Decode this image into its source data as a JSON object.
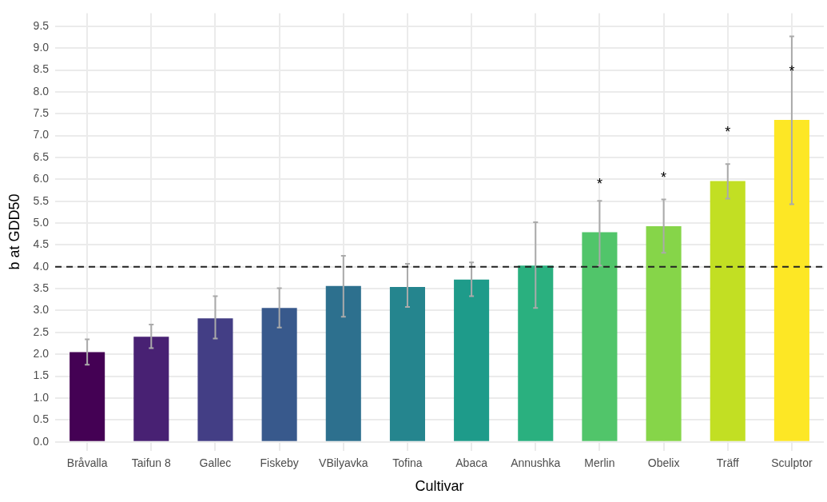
{
  "chart_data": {
    "type": "bar",
    "xlabel": "Cultivar",
    "ylabel": "b at GDD50",
    "categories": [
      "Bråvalla",
      "Taifun 8",
      "Gallec",
      "Fiskeby",
      "VBilyavka",
      "Tofina",
      "Abaca",
      "Annushka",
      "Merlin",
      "Obelix",
      "Träff",
      "Sculptor"
    ],
    "values": [
      2.05,
      2.4,
      2.82,
      3.06,
      3.56,
      3.54,
      3.71,
      4.03,
      4.79,
      4.93,
      5.96,
      7.36
    ],
    "colors": [
      "#440154",
      "#482173",
      "#433e85",
      "#38598c",
      "#2d708e",
      "#25858e",
      "#1e9b8a",
      "#2ab07f",
      "#51c56a",
      "#86d549",
      "#c2df23",
      "#fde725"
    ],
    "errors": [
      [
        1.76,
        2.34
      ],
      [
        2.14,
        2.68
      ],
      [
        2.36,
        3.33
      ],
      [
        2.61,
        3.51
      ],
      [
        2.86,
        4.25
      ],
      [
        3.08,
        4.07
      ],
      [
        3.33,
        4.1
      ],
      [
        3.06,
        5.02
      ],
      [
        4.03,
        5.51
      ],
      [
        4.32,
        5.54
      ],
      [
        5.56,
        6.35
      ],
      [
        5.43,
        9.27
      ]
    ],
    "ylim": [
      -0.2,
      9.8
    ],
    "yticks": [
      {
        "value": 0,
        "label": "0.0"
      },
      {
        "value": 0.5,
        "label": "0.5"
      },
      {
        "value": 1,
        "label": "1.0"
      },
      {
        "value": 1.5,
        "label": "1.5"
      },
      {
        "value": 2,
        "label": "2.0"
      },
      {
        "value": 2.5,
        "label": "2.5"
      },
      {
        "value": 3,
        "label": "3.0"
      },
      {
        "value": 3.5,
        "label": "3.5"
      },
      {
        "value": 4,
        "label": "4.0"
      },
      {
        "value": 4.5,
        "label": "4.5"
      },
      {
        "value": 5,
        "label": "5.0"
      },
      {
        "value": 5.5,
        "label": "5.5"
      },
      {
        "value": 6,
        "label": "6.0"
      },
      {
        "value": 6.5,
        "label": "6.5"
      },
      {
        "value": 7,
        "label": "7.0"
      },
      {
        "value": 7.5,
        "label": "7.5"
      },
      {
        "value": 8,
        "label": "8.0"
      },
      {
        "value": 8.5,
        "label": "8.5"
      },
      {
        "value": 9,
        "label": "9.0"
      },
      {
        "value": 9.5,
        "label": "9.5"
      }
    ],
    "ref_lines": [
      {
        "axis": "y",
        "value": 4,
        "label": null,
        "color": "#222222",
        "line_style": "dashed"
      }
    ],
    "annotations": [
      {
        "text": "*",
        "x": "Merlin",
        "y": 4.79
      },
      {
        "text": "*",
        "x": "Obelix",
        "y": 4.93
      },
      {
        "text": "*",
        "x": "Träff",
        "y": 5.96
      },
      {
        "text": "*",
        "x": "Sculptor",
        "y": 7.36
      }
    ],
    "grid": true,
    "legend": false
  }
}
